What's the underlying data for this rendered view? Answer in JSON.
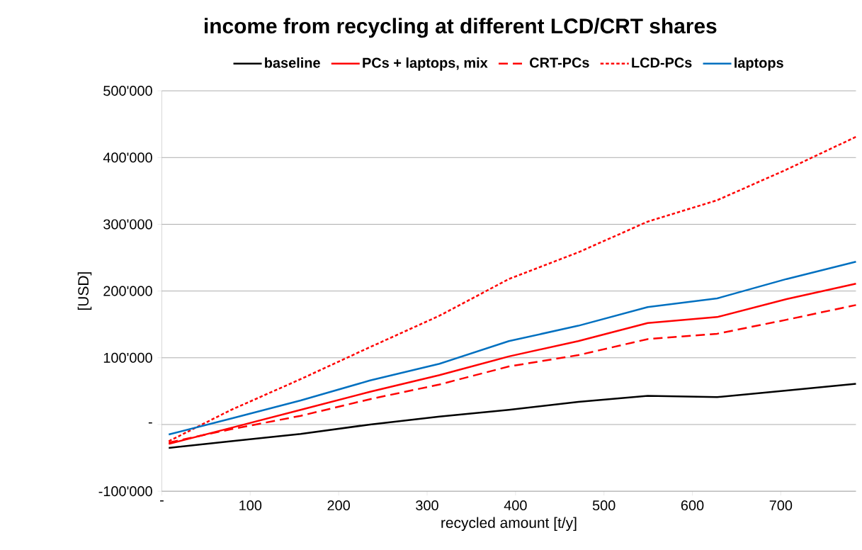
{
  "chart_data": {
    "type": "line",
    "title": "income from recycling at different LCD/CRT shares",
    "xlabel": "recycled amount [t/y]",
    "ylabel": "[USD]",
    "x": [
      7.85,
      78.5,
      157,
      235.5,
      314,
      392.5,
      471,
      549.5,
      628,
      706.5,
      785
    ],
    "series": [
      {
        "name": "baseline",
        "color": "#000000",
        "line_style": "solid",
        "values": [
          -35000,
          -25000,
          -14000,
          0,
          12000,
          22000,
          34000,
          43000,
          41000,
          51000,
          61000
        ]
      },
      {
        "name": "PCs + laptops, mix",
        "color": "#ff0000",
        "line_style": "solid",
        "values": [
          -29000,
          -5000,
          22000,
          49000,
          74000,
          102000,
          125000,
          152000,
          161000,
          188000,
          211000
        ]
      },
      {
        "name": "CRT-PCs",
        "color": "#ff0000",
        "line_style": "dashed",
        "values": [
          -27000,
          -7000,
          13000,
          38000,
          60000,
          87000,
          104000,
          128000,
          136000,
          157000,
          179000
        ]
      },
      {
        "name": "LCD-PCs",
        "color": "#ff0000",
        "line_style": "dotted",
        "values": [
          -25000,
          22000,
          68000,
          116000,
          163000,
          218000,
          258000,
          304000,
          336000,
          382000,
          431000
        ]
      },
      {
        "name": "laptops",
        "color": "#0070c0",
        "line_style": "solid",
        "values": [
          -15000,
          9000,
          36000,
          66000,
          91000,
          125000,
          148000,
          176000,
          189000,
          218000,
          244000
        ]
      }
    ],
    "xlim": [
      0,
      785
    ],
    "ylim": [
      -100000,
      500000
    ],
    "xticks": [
      {
        "value": 0,
        "label": "-"
      },
      100,
      200,
      300,
      400,
      500,
      600,
      700
    ],
    "yticks": [
      {
        "value": -100000,
        "label": "-100'000"
      },
      {
        "value": 0,
        "label": "-"
      },
      {
        "value": 100000,
        "label": "100'000"
      },
      {
        "value": 200000,
        "label": "200'000"
      },
      {
        "value": 300000,
        "label": "300'000"
      },
      {
        "value": 400000,
        "label": "400'000"
      },
      {
        "value": 500000,
        "label": "500'000"
      }
    ],
    "grid": "y",
    "legend": "top",
    "marker": "none"
  }
}
